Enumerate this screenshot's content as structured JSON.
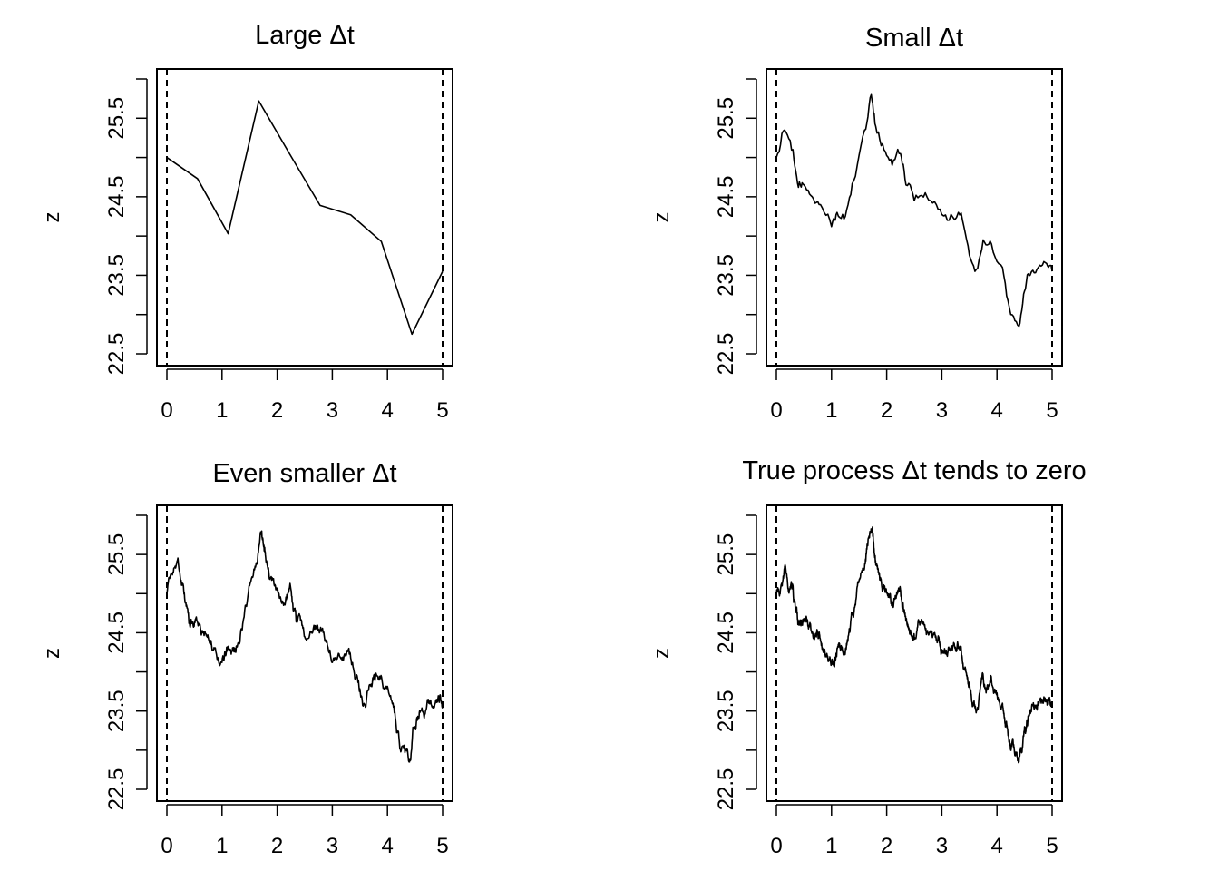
{
  "figure": {
    "layout": "2x2 grid",
    "background": "#ffffff",
    "line_color": "#000000"
  },
  "chart_data": [
    {
      "type": "line",
      "title": "Large Δt",
      "xlabel": "",
      "ylabel": "z",
      "xlim": [
        0,
        5
      ],
      "ylim": [
        22.5,
        26.0
      ],
      "xticks": [
        0,
        1,
        2,
        3,
        4,
        5
      ],
      "yticks": [
        22.5,
        23.0,
        23.5,
        24.0,
        24.5,
        25.0,
        25.5,
        26.0
      ],
      "ytick_labels": [
        "22.5",
        "",
        "23.5",
        "",
        "24.5",
        "",
        "25.5",
        ""
      ],
      "vlines": [
        0,
        5
      ],
      "vline_style": "dashed",
      "grid": false,
      "series": [
        {
          "x": [
            0,
            0.556,
            1.111,
            1.667,
            2.222,
            2.778,
            3.333,
            3.889,
            4.444,
            5.0
          ],
          "y": [
            25.0,
            24.73,
            24.03,
            25.72,
            25.05,
            24.39,
            24.27,
            23.93,
            22.75,
            23.55
          ],
          "resolution": "coarse"
        }
      ]
    },
    {
      "type": "line",
      "title": "Small Δt",
      "xlabel": "",
      "ylabel": "z",
      "xlim": [
        0,
        5
      ],
      "ylim": [
        22.5,
        26.0
      ],
      "xticks": [
        0,
        1,
        2,
        3,
        4,
        5
      ],
      "yticks": [
        22.5,
        23.0,
        23.5,
        24.0,
        24.5,
        25.0,
        25.5,
        26.0
      ],
      "ytick_labels": [
        "22.5",
        "",
        "23.5",
        "",
        "24.5",
        "",
        "25.5",
        ""
      ],
      "vlines": [
        0,
        5
      ],
      "vline_style": "dashed",
      "grid": false,
      "series": [
        {
          "x": [
            0,
            0.15,
            0.3,
            0.4,
            0.5,
            0.65,
            0.8,
            1.0,
            1.1,
            1.25,
            1.4,
            1.6,
            1.72,
            1.8,
            1.95,
            2.1,
            2.25,
            2.35,
            2.5,
            2.7,
            2.9,
            3.1,
            3.3,
            3.45,
            3.6,
            3.75,
            3.9,
            4.1,
            4.25,
            4.4,
            4.5,
            4.6,
            4.75,
            4.9,
            5.0
          ],
          "y": [
            25.0,
            25.35,
            25.1,
            24.62,
            24.65,
            24.5,
            24.4,
            24.12,
            24.3,
            24.25,
            24.7,
            25.35,
            25.8,
            25.4,
            25.1,
            24.9,
            25.05,
            24.65,
            24.45,
            24.55,
            24.4,
            24.2,
            24.3,
            23.95,
            23.55,
            23.95,
            23.9,
            23.6,
            23.0,
            22.85,
            23.3,
            23.5,
            23.6,
            23.65,
            23.55
          ],
          "resolution": "medium"
        }
      ]
    },
    {
      "type": "line",
      "title": "Even smaller Δt",
      "xlabel": "",
      "ylabel": "z",
      "xlim": [
        0,
        5
      ],
      "ylim": [
        22.5,
        26.0
      ],
      "xticks": [
        0,
        1,
        2,
        3,
        4,
        5
      ],
      "yticks": [
        22.5,
        23.0,
        23.5,
        24.0,
        24.5,
        25.0,
        25.5,
        26.0
      ],
      "ytick_labels": [
        "22.5",
        "",
        "23.5",
        "",
        "24.5",
        "",
        "25.5",
        ""
      ],
      "vlines": [
        0,
        5
      ],
      "vline_style": "dashed",
      "grid": false,
      "series": [
        {
          "x": [
            0,
            0.15,
            0.3,
            0.4,
            0.5,
            0.65,
            0.8,
            1.0,
            1.1,
            1.25,
            1.4,
            1.6,
            1.72,
            1.8,
            1.95,
            2.1,
            2.25,
            2.35,
            2.5,
            2.7,
            2.9,
            3.1,
            3.3,
            3.45,
            3.6,
            3.75,
            3.9,
            4.1,
            4.25,
            4.4,
            4.5,
            4.6,
            4.75,
            4.9,
            5.0
          ],
          "y": [
            25.0,
            25.35,
            25.1,
            24.62,
            24.65,
            24.5,
            24.4,
            24.12,
            24.3,
            24.25,
            24.7,
            25.35,
            25.8,
            25.4,
            25.1,
            24.9,
            25.05,
            24.65,
            24.45,
            24.55,
            24.4,
            24.2,
            24.3,
            23.95,
            23.55,
            23.95,
            23.9,
            23.6,
            23.0,
            22.85,
            23.3,
            23.5,
            23.6,
            23.65,
            23.55
          ],
          "resolution": "fine"
        }
      ]
    },
    {
      "type": "line",
      "title": "True process Δt tends to zero",
      "xlabel": "",
      "ylabel": "z",
      "xlim": [
        0,
        5
      ],
      "ylim": [
        22.5,
        26.0
      ],
      "xticks": [
        0,
        1,
        2,
        3,
        4,
        5
      ],
      "yticks": [
        22.5,
        23.0,
        23.5,
        24.0,
        24.5,
        25.0,
        25.5,
        26.0
      ],
      "ytick_labels": [
        "22.5",
        "",
        "23.5",
        "",
        "24.5",
        "",
        "25.5",
        ""
      ],
      "vlines": [
        0,
        5
      ],
      "vline_style": "dashed",
      "grid": false,
      "series": [
        {
          "x": [
            0,
            0.15,
            0.3,
            0.4,
            0.5,
            0.65,
            0.8,
            1.0,
            1.1,
            1.25,
            1.4,
            1.6,
            1.72,
            1.8,
            1.95,
            2.1,
            2.25,
            2.35,
            2.5,
            2.7,
            2.9,
            3.1,
            3.3,
            3.45,
            3.6,
            3.75,
            3.9,
            4.1,
            4.25,
            4.4,
            4.5,
            4.6,
            4.75,
            4.9,
            5.0
          ],
          "y": [
            25.0,
            25.35,
            25.1,
            24.62,
            24.65,
            24.5,
            24.4,
            24.12,
            24.3,
            24.25,
            24.7,
            25.35,
            25.8,
            25.4,
            25.1,
            24.9,
            25.05,
            24.65,
            24.45,
            24.55,
            24.4,
            24.2,
            24.3,
            23.95,
            23.55,
            23.95,
            23.9,
            23.6,
            23.0,
            22.85,
            23.3,
            23.5,
            23.6,
            23.65,
            23.55
          ],
          "resolution": "finest"
        }
      ]
    }
  ]
}
